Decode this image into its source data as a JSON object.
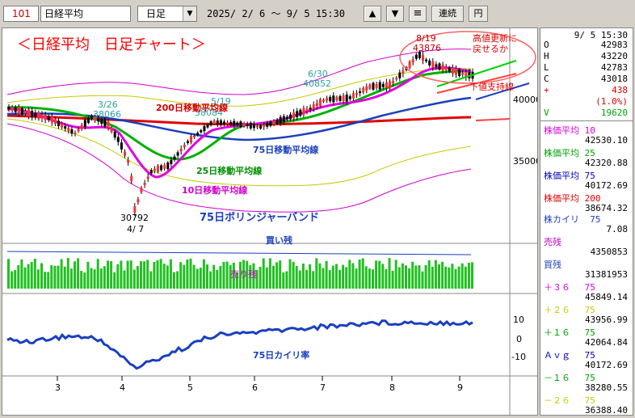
{
  "toolbar": {
    "code": "101",
    "name": "日経平均",
    "period": "日足",
    "range": "2025/ 2/ 6 ～  9/ 5 15:30",
    "continuous_label": "連続",
    "yen_label": "円"
  },
  "chart": {
    "title": "＜日経平均　日足チャート＞",
    "annotations": {
      "high_label": "8/19",
      "high_value": "43876",
      "low_value": "30792",
      "low_label": "4/ 7",
      "jun_label": "6/30",
      "jun_value": "40852",
      "may_label": "5/19",
      "may_value": "38084",
      "mar_label": "3/26",
      "mar_value": "38066",
      "ma200_label": "200日移動平均線",
      "ma75_label": "75日移動平均線",
      "ma25_label": "25日移動平均線",
      "ma10_label": "10日移動平均線",
      "bollinger_label": "75日ボリンジャーバンド",
      "forecast_label": "高値更新に戻せるか",
      "support_label": "下値支持線",
      "buy_label": "買い残",
      "sell_label": "売り残",
      "kairi_label": "75日カイリ率"
    },
    "y_axis": [
      "40000",
      "35000"
    ],
    "kairi_axis": [
      "10",
      "0",
      "-10"
    ],
    "x_axis": [
      "3",
      "4",
      "5",
      "6",
      "7",
      "8",
      "9"
    ]
  },
  "chart_data": {
    "type": "line",
    "x_ticks": [
      "3",
      "4",
      "5",
      "6",
      "7",
      "8",
      "9"
    ],
    "annotated_points": [
      {
        "date": "3/26",
        "value": 38066
      },
      {
        "date": "4/ 7",
        "value": 30792
      },
      {
        "date": "5/19",
        "value": 38084
      },
      {
        "date": "6/30",
        "value": 40852
      },
      {
        "date": "8/19",
        "value": 43876
      }
    ],
    "y_ticks": [
      40000,
      35000
    ],
    "kairi_ticks": [
      10,
      0,
      -10
    ]
  },
  "side": {
    "datetime": "9/ 5 15:30",
    "ohlc": [
      {
        "k": "O",
        "v": "42983"
      },
      {
        "k": "H",
        "v": "43220"
      },
      {
        "k": "L",
        "v": "42783"
      },
      {
        "k": "C",
        "v": "43018"
      }
    ],
    "change": "438",
    "change_pct": "(1.0%)",
    "volume": "19620",
    "ma": [
      {
        "label": "株価平均",
        "period": "10",
        "value": "42530.10",
        "color": "#e000e0"
      },
      {
        "label": "株価平均",
        "period": "25",
        "value": "42320.88",
        "color": "#00a000"
      },
      {
        "label": "株価平均",
        "period": "75",
        "value": "40172.69",
        "color": "#0000c0"
      },
      {
        "label": "株価平均",
        "period": "200",
        "value": "38674.32",
        "color": "#e00000"
      }
    ],
    "kairi_label": "株カイリ",
    "kairi_period": "75",
    "kairi_value": "7.08",
    "sell_label": "売残",
    "sell_value": "4350853",
    "buy_label": "買残",
    "buy_value": "31381953",
    "bands": [
      {
        "label": "＋３６",
        "period": "75",
        "value": "45849.14",
        "color": "#e000e0"
      },
      {
        "label": "＋２６",
        "period": "75",
        "value": "43956.99",
        "color": "#c8c800"
      },
      {
        "label": "＋１６",
        "period": "75",
        "value": "42064.84",
        "color": "#00a000"
      },
      {
        "label": "Ａｖｇ",
        "period": "75",
        "value": "40172.69",
        "color": "#0000c0"
      },
      {
        "label": "－１６",
        "period": "75",
        "value": "38280.55",
        "color": "#00a000"
      },
      {
        "label": "－２６",
        "period": "75",
        "value": "36388.40",
        "color": "#c8c800"
      }
    ]
  }
}
